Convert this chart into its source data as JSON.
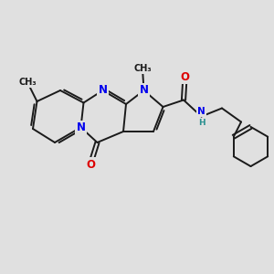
{
  "bg_color": "#e0e0e0",
  "bond_color": "#1a1a1a",
  "bond_width": 1.4,
  "atom_colors": {
    "N": "#0000ee",
    "O": "#dd0000",
    "H": "#2a9090",
    "C": "#1a1a1a"
  },
  "font_size": 8.5,
  "font_size_small": 7.0
}
